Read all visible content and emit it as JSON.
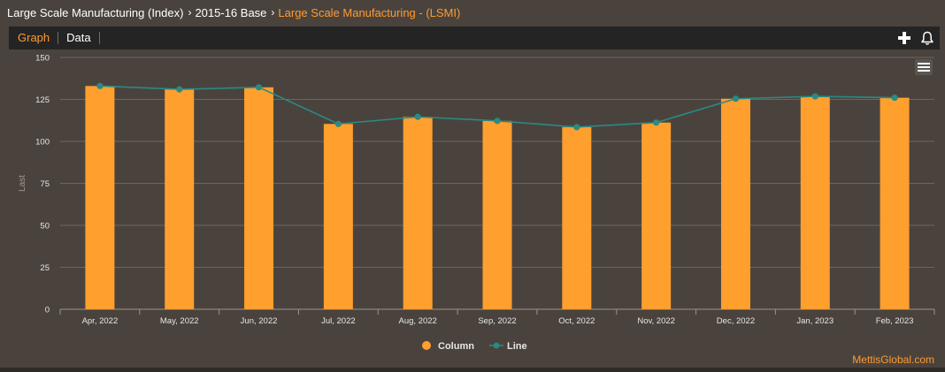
{
  "breadcrumb": {
    "items": [
      {
        "label": "Large Scale Manufacturing (Index)"
      },
      {
        "label": "2015-16 Base"
      },
      {
        "label": "Large Scale Manufacturing - (LSMI)"
      }
    ]
  },
  "tabs": [
    {
      "label": "Graph",
      "active": true
    },
    {
      "label": "Data",
      "active": false
    }
  ],
  "icons": {
    "add": "plus-icon",
    "alert": "bell-icon",
    "menu": "hamburger-icon"
  },
  "colors": {
    "column": "#ff9f2e",
    "line": "#2a8a84",
    "accent": "#ff9a2e"
  },
  "credit": "MettisGlobal.com",
  "chart_data": {
    "type": "bar",
    "categories": [
      "Apr, 2022",
      "May, 2022",
      "Jun, 2022",
      "Jul, 2022",
      "Aug, 2022",
      "Sep, 2022",
      "Oct, 2022",
      "Nov, 2022",
      "Dec, 2022",
      "Jan, 2023",
      "Feb, 2023"
    ],
    "series": [
      {
        "name": "Column",
        "type": "column",
        "values": [
          133.0,
          131.0,
          132.2,
          110.4,
          114.6,
          112.2,
          108.5,
          111.2,
          125.4,
          126.8,
          126.0
        ]
      },
      {
        "name": "Line",
        "type": "line",
        "values": [
          133.0,
          131.0,
          132.2,
          110.4,
          114.6,
          112.2,
          108.5,
          111.2,
          125.4,
          126.8,
          126.0
        ]
      }
    ],
    "ylabel": "Last",
    "xlabel": "",
    "ylim": [
      0,
      150
    ],
    "yticks": [
      0,
      25,
      50,
      75,
      100,
      125,
      150
    ],
    "grid": true,
    "legend": "bottom-center"
  }
}
